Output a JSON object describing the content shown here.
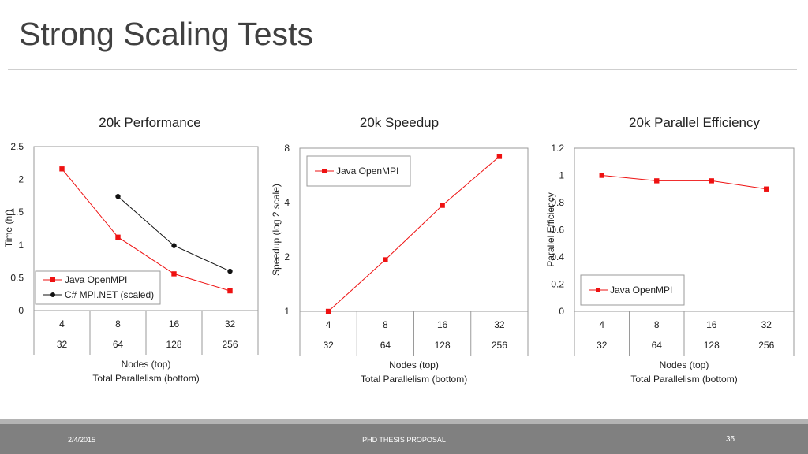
{
  "slide": {
    "title": "Strong Scaling Tests"
  },
  "footer": {
    "date": "2/4/2015",
    "center": "PHD THESIS PROPOSAL",
    "page": "35"
  },
  "colors": {
    "java": "#ee1111",
    "csharp": "#111111"
  },
  "chart_data": [
    {
      "type": "line",
      "title": "20k Performance",
      "ylabel": "Time (hr)",
      "xlabel": [
        "Nodes (top)",
        "Total Parallelism (bottom)"
      ],
      "categories_top": [
        "4",
        "8",
        "16",
        "32"
      ],
      "categories_bottom": [
        "32",
        "64",
        "128",
        "256"
      ],
      "y_scale": "linear",
      "ylim": [
        0,
        2.5
      ],
      "yticks": [
        0,
        0.5,
        1,
        1.5,
        2,
        2.5
      ],
      "ytick_labels": [
        "0",
        "0.5",
        "1",
        "1.5",
        "2",
        "2.5"
      ],
      "grid": false,
      "legend": "bottom-left",
      "series": [
        {
          "name": "Java OpenMPI",
          "color": "#ee1111",
          "marker": "square",
          "values": [
            2.16,
            1.12,
            0.56,
            0.3
          ]
        },
        {
          "name": "C# MPI.NET (scaled)",
          "color": "#111111",
          "marker": "circle",
          "values": [
            null,
            1.74,
            0.99,
            0.6
          ]
        }
      ]
    },
    {
      "type": "line",
      "title": "20k Speedup",
      "ylabel": "Speedup (log 2 scale)",
      "xlabel": [
        "Nodes (top)",
        "Total Parallelism (bottom)"
      ],
      "categories_top": [
        "4",
        "8",
        "16",
        "32"
      ],
      "categories_bottom": [
        "32",
        "64",
        "128",
        "256"
      ],
      "y_scale": "log2",
      "ylim": [
        1,
        8
      ],
      "yticks": [
        1,
        2,
        4,
        8
      ],
      "ytick_labels": [
        "1",
        "2",
        "4",
        "8"
      ],
      "grid": false,
      "legend": "top-left",
      "series": [
        {
          "name": "Java OpenMPI",
          "color": "#ee1111",
          "marker": "square",
          "values": [
            1,
            1.93,
            3.86,
            7.2
          ]
        }
      ]
    },
    {
      "type": "line",
      "title": "20k Parallel Efficiency",
      "ylabel": "Parallel Efficiency",
      "xlabel": [
        "Nodes (top)",
        "Total Parallelism (bottom)"
      ],
      "categories_top": [
        "4",
        "8",
        "16",
        "32"
      ],
      "categories_bottom": [
        "32",
        "64",
        "128",
        "256"
      ],
      "y_scale": "linear",
      "ylim": [
        0,
        1.2
      ],
      "yticks": [
        0,
        0.2,
        0.4,
        0.6,
        0.8,
        1,
        1.2
      ],
      "ytick_labels": [
        "0",
        "0.2",
        "0.4",
        "0.6",
        "0.8",
        "1",
        "1.2"
      ],
      "grid": false,
      "legend": "bottom-left",
      "series": [
        {
          "name": "Java OpenMPI",
          "color": "#ee1111",
          "marker": "square",
          "values": [
            1.0,
            0.96,
            0.96,
            0.9
          ]
        }
      ]
    }
  ]
}
